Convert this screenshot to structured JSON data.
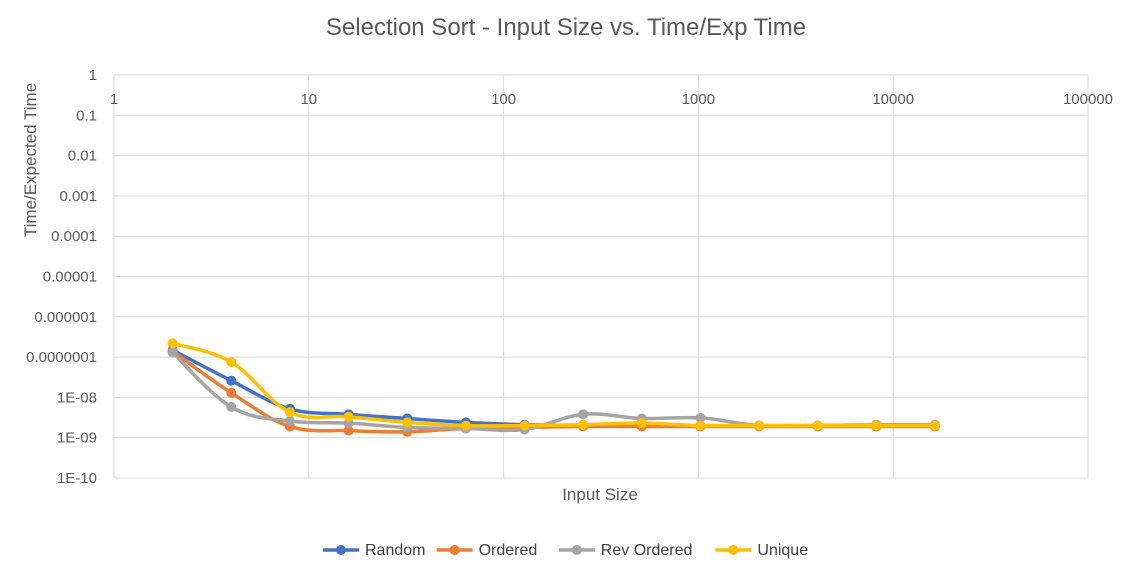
{
  "chart_data": {
    "type": "line",
    "title": "Selection Sort - Input Size vs. Time/Exp Time",
    "xlabel": "Input Size",
    "ylabel": "Time/Expected Time",
    "x_scale": "log",
    "y_scale": "log",
    "xlim": [
      1,
      100000
    ],
    "ylim": [
      1e-10,
      1
    ],
    "x_ticks": [
      "1",
      "10",
      "100",
      "1000",
      "10000",
      "100000"
    ],
    "y_ticks": [
      "1",
      "0.1",
      "0.01",
      "0.001",
      "0.0001",
      "0.00001",
      "0.000001",
      "0.0000001",
      "1E-08",
      "1E-09",
      "1E-10"
    ],
    "grid": true,
    "legend_position": "bottom",
    "x": [
      2,
      4,
      8,
      16,
      32,
      64,
      128,
      256,
      512,
      1024,
      2048,
      4096,
      8192,
      16384
    ],
    "series": [
      {
        "name": "Random",
        "color": "#4472C4",
        "values": [
          1.5e-07,
          2.6e-08,
          5.2e-09,
          3.8e-09,
          3e-09,
          2.4e-09,
          2.1e-09,
          2e-09,
          2e-09,
          2e-09,
          2e-09,
          2e-09,
          2e-09,
          2e-09
        ]
      },
      {
        "name": "Ordered",
        "color": "#ED7D31",
        "values": [
          1.4e-07,
          1.3e-08,
          1.9e-09,
          1.5e-09,
          1.4e-09,
          1.7e-09,
          1.8e-09,
          1.9e-09,
          1.9e-09,
          1.9e-09,
          1.9e-09,
          1.9e-09,
          1.9e-09,
          1.9e-09
        ]
      },
      {
        "name": "Rev Ordered",
        "color": "#A5A5A5",
        "values": [
          1.3e-07,
          5.8e-09,
          2.6e-09,
          2.3e-09,
          1.8e-09,
          1.7e-09,
          1.6e-09,
          3.8e-09,
          3e-09,
          3.1e-09,
          2e-09,
          2e-09,
          2.1e-09,
          2.1e-09
        ]
      },
      {
        "name": "Unique",
        "color": "#FFC000",
        "values": [
          2.2e-07,
          7.5e-08,
          4.3e-09,
          3.3e-09,
          2.4e-09,
          2e-09,
          2e-09,
          2.1e-09,
          2.3e-09,
          2e-09,
          2e-09,
          2e-09,
          2e-09,
          2e-09
        ]
      }
    ]
  }
}
